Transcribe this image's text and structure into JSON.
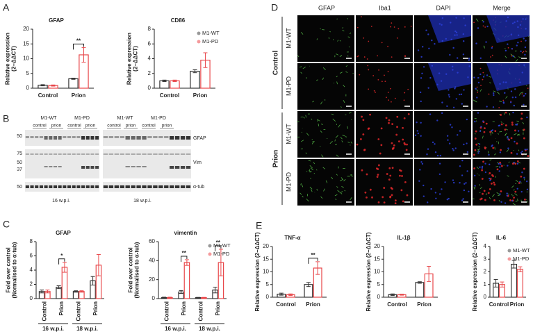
{
  "panel_labels": [
    "A",
    "B",
    "C",
    "D",
    "E"
  ],
  "chart_data": [
    {
      "type": "bar",
      "title": "GFAP",
      "y_label": [
        "Relative expression",
        "(2−ΔΔCT)"
      ],
      "categories": [
        "Control",
        "Prion"
      ],
      "series": [
        {
          "name": "M1-WT",
          "color": "#333333",
          "values": [
            1.0,
            3.2
          ],
          "errors": [
            0.2,
            0.2
          ]
        },
        {
          "name": "M1-PD",
          "color": "#e8474a",
          "values": [
            0.9,
            11.3
          ],
          "errors": [
            0.2,
            2.5
          ]
        }
      ],
      "significance": [
        null,
        "**"
      ],
      "ylim": [
        0,
        20
      ],
      "yticks": [
        0,
        5,
        10,
        15,
        20
      ]
    },
    {
      "type": "bar",
      "title": "CD86",
      "y_label": [
        "Relative expression",
        "(2−ΔΔCT)"
      ],
      "categories": [
        "Control",
        "Prion"
      ],
      "series": [
        {
          "name": "M1-WT",
          "color": "#333333",
          "values": [
            1.0,
            2.3
          ],
          "errors": [
            0.1,
            0.2
          ]
        },
        {
          "name": "M1-PD",
          "color": "#e8474a",
          "values": [
            1.0,
            3.8
          ],
          "errors": [
            0.1,
            1.0
          ]
        }
      ],
      "ylim": [
        0,
        8
      ],
      "yticks": [
        0,
        2,
        4,
        6,
        8
      ],
      "legend": "top-right"
    },
    {
      "type": "bar",
      "title": "GFAP",
      "y_label": [
        "Fold over control",
        "(Normalised to α-tub)"
      ],
      "categories": [
        "Control",
        "Prion",
        "Control",
        "Prion"
      ],
      "x_groups": [
        "16 w.p.i.",
        "18 w.p.i."
      ],
      "series": [
        {
          "name": "M1-WT",
          "color": "#333333",
          "values": [
            1.0,
            1.6,
            1.0,
            2.5
          ],
          "errors": [
            0.2,
            0.2,
            0.1,
            0.6
          ]
        },
        {
          "name": "M1-PD",
          "color": "#e8474a",
          "values": [
            1.0,
            4.4,
            1.0,
            4.7
          ],
          "errors": [
            0.2,
            0.7,
            0.1,
            1.5
          ]
        }
      ],
      "significance": [
        null,
        "*",
        null,
        null
      ],
      "ylim": [
        0,
        8
      ],
      "yticks": [
        0,
        2,
        4,
        6,
        8
      ]
    },
    {
      "type": "bar",
      "title": "vimentin",
      "y_label": [
        "Fold over control",
        "(Normalised to α-tub)"
      ],
      "categories": [
        "Control",
        "Prion",
        "Control",
        "Prion"
      ],
      "x_groups": [
        "16 w.p.i.",
        "18 w.p.i."
      ],
      "series": [
        {
          "name": "M1-WT",
          "color": "#333333",
          "values": [
            1,
            7,
            1,
            9
          ],
          "errors": [
            0.5,
            1.5,
            0.3,
            3
          ]
        },
        {
          "name": "M1-PD",
          "color": "#e8474a",
          "values": [
            1,
            38,
            1,
            38
          ],
          "errors": [
            0.5,
            3,
            0.3,
            14
          ]
        }
      ],
      "significance": [
        null,
        "**",
        null,
        "**"
      ],
      "ylim": [
        0,
        60
      ],
      "yticks": [
        0,
        20,
        40,
        60
      ],
      "legend": "top-right"
    },
    {
      "type": "bar",
      "title": "TNF-α",
      "y_label": [
        "Relative expression (2−ΔΔCT)"
      ],
      "categories": [
        "Control",
        "Prion"
      ],
      "series": [
        {
          "name": "M1-WT",
          "color": "#333333",
          "values": [
            1.2,
            5.0
          ],
          "errors": [
            0.4,
            0.8
          ]
        },
        {
          "name": "M1-PD",
          "color": "#e8474a",
          "values": [
            1.0,
            11.5
          ],
          "errors": [
            0.3,
            2.5
          ]
        }
      ],
      "significance": [
        null,
        "**"
      ],
      "ylim": [
        0,
        20
      ],
      "yticks": [
        0,
        5,
        10,
        15,
        20
      ]
    },
    {
      "type": "bar",
      "title": "IL-1β",
      "y_label": [
        "Relative expression (2−ΔΔCT)"
      ],
      "categories": [
        "Control",
        "Prion"
      ],
      "series": [
        {
          "name": "M1-WT",
          "color": "#333333",
          "values": [
            1.0,
            5.8
          ],
          "errors": [
            0.3,
            0.3
          ]
        },
        {
          "name": "M1-PD",
          "color": "#e8474a",
          "values": [
            1.0,
            9.2
          ],
          "errors": [
            0.2,
            3.0
          ]
        }
      ],
      "ylim": [
        0,
        20
      ],
      "yticks": [
        0,
        5,
        10,
        15,
        20
      ]
    },
    {
      "type": "bar",
      "title": "IL-6",
      "y_label": [
        "Relative expression (2−ΔΔCT)"
      ],
      "categories": [
        "Control",
        "Prion"
      ],
      "series": [
        {
          "name": "M1-WT",
          "color": "#333333",
          "values": [
            1.1,
            2.6
          ],
          "errors": [
            0.3,
            0.3
          ]
        },
        {
          "name": "M1-PD",
          "color": "#e8474a",
          "values": [
            1.0,
            2.2
          ],
          "errors": [
            0.2,
            0.2
          ]
        }
      ],
      "ylim": [
        0,
        4
      ],
      "yticks": [
        0,
        1,
        2,
        3,
        4
      ],
      "legend": "top-right"
    }
  ],
  "blot": {
    "groups": [
      "M1-WT",
      "M1-PD",
      "M1-WT",
      "M1-PD"
    ],
    "conditions": [
      "control",
      "prion",
      "control",
      "prion",
      "control",
      "prion",
      "control",
      "prion"
    ],
    "markers": [
      50,
      75,
      50,
      37,
      50
    ],
    "proteins": [
      "GFAP",
      "Vim",
      "α-tub"
    ],
    "timepoints": [
      "16 w.p.i.",
      "18 w.p.i."
    ]
  },
  "micrograph": {
    "channels": [
      "GFAP",
      "Iba1",
      "DAPI",
      "Merge"
    ],
    "conditions": [
      "Control",
      "Prion"
    ],
    "genotypes": [
      "M1-WT",
      "M1-PD",
      "M1-WT",
      "M1-PD"
    ]
  }
}
